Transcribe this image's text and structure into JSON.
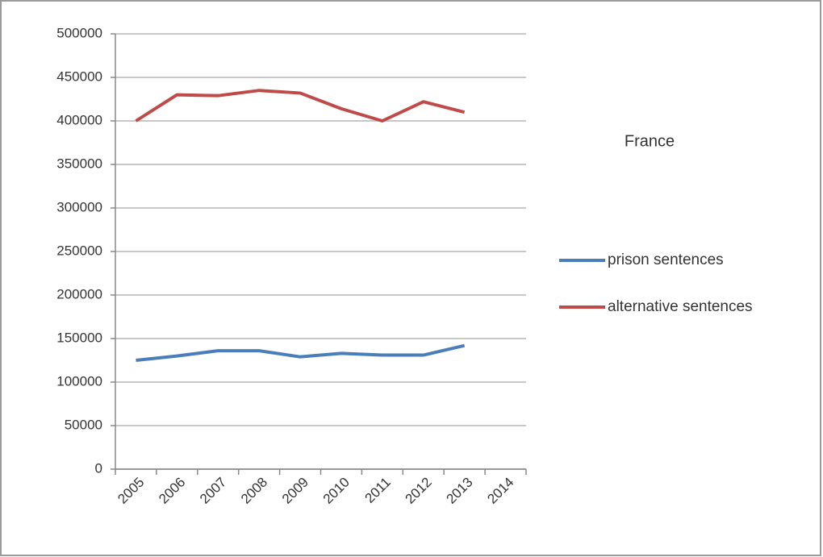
{
  "chart_data": {
    "type": "line",
    "title": "France",
    "categories": [
      "2005",
      "2006",
      "2007",
      "2008",
      "2009",
      "2010",
      "2011",
      "2012",
      "2013",
      "2014"
    ],
    "series": [
      {
        "name": "prison sentences",
        "color": "#4a7ebb",
        "values": [
          125000,
          130000,
          136000,
          136000,
          129000,
          133000,
          131000,
          131000,
          142000,
          null
        ]
      },
      {
        "name": "alternative sentences",
        "color": "#be4b48",
        "values": [
          400000,
          430000,
          429000,
          435000,
          432000,
          414000,
          400000,
          422000,
          410000,
          null
        ]
      }
    ],
    "ylim": [
      0,
      500000
    ],
    "yticks": [
      0,
      50000,
      100000,
      150000,
      200000,
      250000,
      300000,
      350000,
      400000,
      450000,
      500000
    ],
    "grid": true,
    "legend": "right"
  }
}
